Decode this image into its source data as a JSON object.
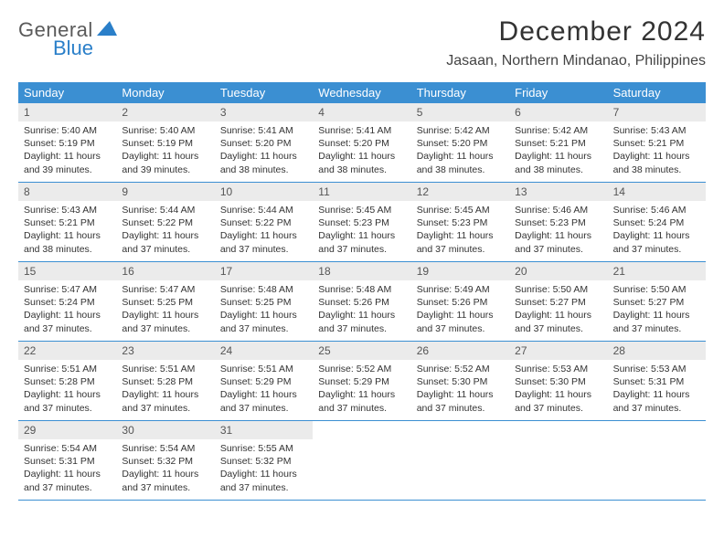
{
  "logo": {
    "text1": "General",
    "text2": "Blue",
    "tri_color": "#2a7fc9"
  },
  "title": "December 2024",
  "location": "Jasaan, Northern Mindanao, Philippines",
  "colors": {
    "header_bg": "#3b8fd2",
    "header_text": "#ffffff",
    "daynum_bg": "#ebebeb",
    "border": "#3b8fd2"
  },
  "day_names": [
    "Sunday",
    "Monday",
    "Tuesday",
    "Wednesday",
    "Thursday",
    "Friday",
    "Saturday"
  ],
  "days": [
    {
      "n": "1",
      "sr": "5:40 AM",
      "ss": "5:19 PM",
      "dl": "11 hours and 39 minutes."
    },
    {
      "n": "2",
      "sr": "5:40 AM",
      "ss": "5:19 PM",
      "dl": "11 hours and 39 minutes."
    },
    {
      "n": "3",
      "sr": "5:41 AM",
      "ss": "5:20 PM",
      "dl": "11 hours and 38 minutes."
    },
    {
      "n": "4",
      "sr": "5:41 AM",
      "ss": "5:20 PM",
      "dl": "11 hours and 38 minutes."
    },
    {
      "n": "5",
      "sr": "5:42 AM",
      "ss": "5:20 PM",
      "dl": "11 hours and 38 minutes."
    },
    {
      "n": "6",
      "sr": "5:42 AM",
      "ss": "5:21 PM",
      "dl": "11 hours and 38 minutes."
    },
    {
      "n": "7",
      "sr": "5:43 AM",
      "ss": "5:21 PM",
      "dl": "11 hours and 38 minutes."
    },
    {
      "n": "8",
      "sr": "5:43 AM",
      "ss": "5:21 PM",
      "dl": "11 hours and 38 minutes."
    },
    {
      "n": "9",
      "sr": "5:44 AM",
      "ss": "5:22 PM",
      "dl": "11 hours and 37 minutes."
    },
    {
      "n": "10",
      "sr": "5:44 AM",
      "ss": "5:22 PM",
      "dl": "11 hours and 37 minutes."
    },
    {
      "n": "11",
      "sr": "5:45 AM",
      "ss": "5:23 PM",
      "dl": "11 hours and 37 minutes."
    },
    {
      "n": "12",
      "sr": "5:45 AM",
      "ss": "5:23 PM",
      "dl": "11 hours and 37 minutes."
    },
    {
      "n": "13",
      "sr": "5:46 AM",
      "ss": "5:23 PM",
      "dl": "11 hours and 37 minutes."
    },
    {
      "n": "14",
      "sr": "5:46 AM",
      "ss": "5:24 PM",
      "dl": "11 hours and 37 minutes."
    },
    {
      "n": "15",
      "sr": "5:47 AM",
      "ss": "5:24 PM",
      "dl": "11 hours and 37 minutes."
    },
    {
      "n": "16",
      "sr": "5:47 AM",
      "ss": "5:25 PM",
      "dl": "11 hours and 37 minutes."
    },
    {
      "n": "17",
      "sr": "5:48 AM",
      "ss": "5:25 PM",
      "dl": "11 hours and 37 minutes."
    },
    {
      "n": "18",
      "sr": "5:48 AM",
      "ss": "5:26 PM",
      "dl": "11 hours and 37 minutes."
    },
    {
      "n": "19",
      "sr": "5:49 AM",
      "ss": "5:26 PM",
      "dl": "11 hours and 37 minutes."
    },
    {
      "n": "20",
      "sr": "5:50 AM",
      "ss": "5:27 PM",
      "dl": "11 hours and 37 minutes."
    },
    {
      "n": "21",
      "sr": "5:50 AM",
      "ss": "5:27 PM",
      "dl": "11 hours and 37 minutes."
    },
    {
      "n": "22",
      "sr": "5:51 AM",
      "ss": "5:28 PM",
      "dl": "11 hours and 37 minutes."
    },
    {
      "n": "23",
      "sr": "5:51 AM",
      "ss": "5:28 PM",
      "dl": "11 hours and 37 minutes."
    },
    {
      "n": "24",
      "sr": "5:51 AM",
      "ss": "5:29 PM",
      "dl": "11 hours and 37 minutes."
    },
    {
      "n": "25",
      "sr": "5:52 AM",
      "ss": "5:29 PM",
      "dl": "11 hours and 37 minutes."
    },
    {
      "n": "26",
      "sr": "5:52 AM",
      "ss": "5:30 PM",
      "dl": "11 hours and 37 minutes."
    },
    {
      "n": "27",
      "sr": "5:53 AM",
      "ss": "5:30 PM",
      "dl": "11 hours and 37 minutes."
    },
    {
      "n": "28",
      "sr": "5:53 AM",
      "ss": "5:31 PM",
      "dl": "11 hours and 37 minutes."
    },
    {
      "n": "29",
      "sr": "5:54 AM",
      "ss": "5:31 PM",
      "dl": "11 hours and 37 minutes."
    },
    {
      "n": "30",
      "sr": "5:54 AM",
      "ss": "5:32 PM",
      "dl": "11 hours and 37 minutes."
    },
    {
      "n": "31",
      "sr": "5:55 AM",
      "ss": "5:32 PM",
      "dl": "11 hours and 37 minutes."
    }
  ],
  "labels": {
    "sunrise": "Sunrise:",
    "sunset": "Sunset:",
    "daylight": "Daylight:"
  }
}
